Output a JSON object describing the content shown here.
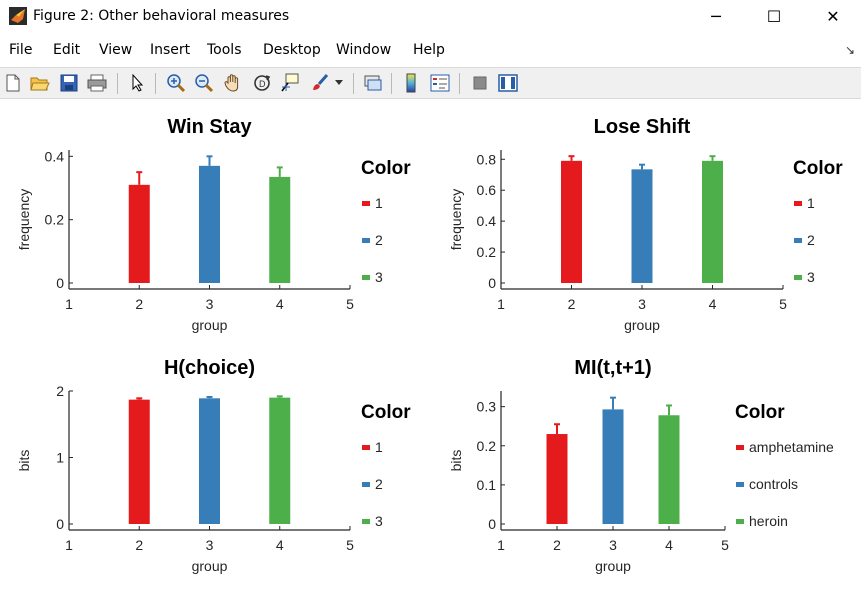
{
  "window": {
    "title": "Figure 2: Other behavioral measures",
    "minimize": "─",
    "maximize": "☐",
    "close": "✕"
  },
  "menu": [
    "File",
    "Edit",
    "View",
    "Insert",
    "Tools",
    "Desktop",
    "Window",
    "Help"
  ],
  "toolbar_icons": [
    "new-figure-icon",
    "open-file-icon",
    "save-icon",
    "print-icon",
    "pointer-icon",
    "zoom-in-icon",
    "zoom-out-icon",
    "pan-hand-icon",
    "rotate-3d-icon",
    "data-cursor-icon",
    "brush-icon",
    "brush-dropdown-icon",
    "link-plot-icon",
    "colorbar-icon",
    "legend-icon",
    "hide-plot-tools-icon",
    "show-plot-tools-icon"
  ],
  "colors": {
    "1": "#e41a1c",
    "2": "#377eb8",
    "3": "#4daf4a",
    "axis": "#262626"
  },
  "chart_data": [
    {
      "type": "bar",
      "title": "Win Stay",
      "xlabel": "group",
      "ylabel": "frequency",
      "xlim": [
        1,
        5
      ],
      "ylim": [
        0,
        0.42
      ],
      "xticks": [
        "1",
        "2",
        "3",
        "4",
        "5"
      ],
      "yticks": [
        0,
        0.2,
        0.4
      ],
      "ytick_labels": [
        "0",
        "0.2",
        "0.4"
      ],
      "x": [
        2,
        3,
        4
      ],
      "values": [
        0.31,
        0.37,
        0.335
      ],
      "errors": [
        0.04,
        0.03,
        0.03
      ],
      "color_keys": [
        "1",
        "2",
        "3"
      ],
      "legend_title": "Color",
      "legend": [
        "1",
        "2",
        "3"
      ]
    },
    {
      "type": "bar",
      "title": "Lose Shift",
      "xlabel": "group",
      "ylabel": "frequency",
      "xlim": [
        1,
        5
      ],
      "ylim": [
        0,
        0.86
      ],
      "xticks": [
        "1",
        "2",
        "3",
        "4",
        "5"
      ],
      "yticks": [
        0,
        0.2,
        0.4,
        0.6,
        0.8
      ],
      "ytick_labels": [
        "0",
        "0.2",
        "0.4",
        "0.6",
        "0.8"
      ],
      "x": [
        2,
        3,
        4
      ],
      "values": [
        0.79,
        0.735,
        0.79
      ],
      "errors": [
        0.03,
        0.03,
        0.03
      ],
      "color_keys": [
        "1",
        "2",
        "3"
      ],
      "legend_title": "Color",
      "legend": [
        "1",
        "2",
        "3"
      ]
    },
    {
      "type": "bar",
      "title": "H(choice)",
      "xlabel": "group",
      "ylabel": "bits",
      "xlim": [
        1,
        5
      ],
      "ylim": [
        0,
        2.0
      ],
      "xticks": [
        "1",
        "2",
        "3",
        "4",
        "5"
      ],
      "yticks": [
        0,
        1,
        2
      ],
      "ytick_labels": [
        "0",
        "1",
        "2"
      ],
      "x": [
        2,
        3,
        4
      ],
      "values": [
        1.87,
        1.89,
        1.9
      ],
      "errors": [
        0.02,
        0.02,
        0.02
      ],
      "color_keys": [
        "1",
        "2",
        "3"
      ],
      "legend_title": "Color",
      "legend": [
        "1",
        "2",
        "3"
      ]
    },
    {
      "type": "bar",
      "title": "MI(t,t+1)",
      "xlabel": "group",
      "ylabel": "bits",
      "xlim": [
        1,
        5
      ],
      "ylim": [
        0,
        0.34
      ],
      "xticks": [
        "1",
        "2",
        "3",
        "4",
        "5"
      ],
      "yticks": [
        0,
        0.1,
        0.2,
        0.3
      ],
      "ytick_labels": [
        "0",
        "0.1",
        "0.2",
        "0.3"
      ],
      "x": [
        2,
        3,
        4
      ],
      "values": [
        0.23,
        0.293,
        0.278
      ],
      "errors": [
        0.025,
        0.03,
        0.025
      ],
      "color_keys": [
        "1",
        "2",
        "3"
      ],
      "legend_title": "Color",
      "legend": [
        "amphetamine",
        "controls",
        "heroin"
      ]
    }
  ]
}
